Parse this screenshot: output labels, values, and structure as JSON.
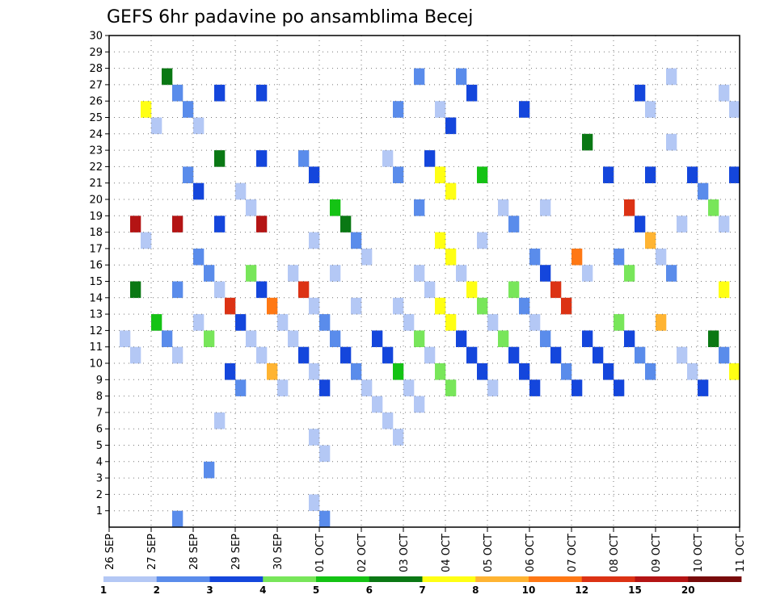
{
  "chart_data": {
    "type": "heatmap",
    "title": "GEFS 6hr padavine po ansamblima Becej",
    "x_tick_labels": [
      "26 SEP",
      "27 SEP",
      "28 SEP",
      "29 SEP",
      "30 SEP",
      "01 OCT",
      "02 OCT",
      "03 OCT",
      "04 OCT",
      "05 OCT",
      "06 OCT",
      "07 OCT",
      "08 OCT",
      "09 OCT",
      "10 OCT",
      "11 OCT"
    ],
    "x_range_steps": [
      0,
      60
    ],
    "y_tick_labels": [
      "1",
      "2",
      "3",
      "4",
      "5",
      "6",
      "7",
      "8",
      "9",
      "10",
      "11",
      "12",
      "13",
      "14",
      "15",
      "16",
      "17",
      "18",
      "19",
      "20",
      "21",
      "22",
      "23",
      "24",
      "25",
      "26",
      "27",
      "28",
      "29",
      "30"
    ],
    "y_range_members": [
      0,
      30
    ],
    "grid": true,
    "legend": "bottom",
    "colorbar_labels": [
      "1",
      "2",
      "3",
      "4",
      "5",
      "6",
      "7",
      "8",
      "10",
      "12",
      "15",
      "20"
    ],
    "levels_colors": [
      "#b4c8f5",
      "#5a8ceb",
      "#1446dc",
      "#78e65a",
      "#14c314",
      "#0a7814",
      "#ffff14",
      "#ffb432",
      "#ff7814",
      "#dc3214",
      "#b41414",
      "#780a0a"
    ],
    "cells": [
      [
        0,
        1,
        2,
        0
      ],
      [
        0,
        2,
        2,
        0
      ],
      [
        0,
        2,
        3,
        5
      ],
      [
        0,
        2,
        4,
        10
      ],
      [
        0,
        3,
        4,
        0
      ],
      [
        0,
        3,
        6,
        6
      ],
      [
        0,
        4,
        3,
        4
      ],
      [
        0,
        4,
        6,
        0
      ],
      [
        0,
        5,
        2,
        1
      ],
      [
        0,
        5,
        6,
        5
      ],
      [
        0,
        6,
        2,
        0
      ],
      [
        0,
        6,
        3,
        1
      ],
      [
        0,
        6,
        4,
        10
      ],
      [
        0,
        6,
        6,
        1
      ],
      [
        0,
        6,
        7,
        1
      ],
      [
        0,
        7,
        5,
        1
      ],
      [
        0,
        7,
        6,
        1
      ],
      [
        0,
        8,
        3,
        0
      ],
      [
        0,
        8,
        4,
        1
      ],
      [
        0,
        8,
        5,
        2
      ],
      [
        0,
        8,
        6,
        0
      ],
      [
        0,
        9,
        0,
        1
      ],
      [
        0,
        9,
        2,
        3
      ],
      [
        0,
        9,
        3,
        1
      ],
      [
        0,
        10,
        1,
        0
      ],
      [
        0,
        10,
        3,
        0
      ],
      [
        0,
        10,
        4,
        2
      ],
      [
        0,
        10,
        5,
        5
      ],
      [
        0,
        10,
        6,
        2
      ],
      [
        0,
        11,
        2,
        2
      ],
      [
        0,
        11,
        3,
        9
      ],
      [
        0,
        12,
        2,
        1
      ],
      [
        0,
        12,
        3,
        2
      ],
      [
        0,
        12,
        5,
        0
      ],
      [
        0,
        13,
        2,
        0
      ],
      [
        0,
        13,
        3,
        3
      ],
      [
        0,
        13,
        4,
        0
      ],
      [
        0,
        14,
        2,
        0
      ],
      [
        0,
        14,
        3,
        2
      ],
      [
        0,
        14,
        4,
        10
      ],
      [
        0,
        14,
        5,
        2
      ],
      [
        0,
        14,
        6,
        2
      ],
      [
        0,
        15,
        2,
        7
      ],
      [
        0,
        15,
        3,
        8
      ],
      [
        0,
        16,
        2,
        0
      ],
      [
        0,
        16,
        3,
        0
      ],
      [
        0,
        17,
        2,
        0
      ],
      [
        0,
        17,
        3,
        0
      ],
      [
        0,
        18,
        2,
        2
      ],
      [
        0,
        18,
        3,
        9
      ],
      [
        0,
        18,
        5,
        1
      ],
      [
        0,
        19,
        0,
        0
      ],
      [
        0,
        19,
        1,
        0
      ],
      [
        0,
        19,
        2,
        0
      ],
      [
        0,
        19,
        3,
        0
      ],
      [
        0,
        19,
        4,
        0
      ],
      [
        0,
        19,
        5,
        2
      ],
      [
        0,
        20,
        0,
        1
      ],
      [
        0,
        20,
        1,
        0
      ],
      [
        0,
        20,
        2,
        2
      ],
      [
        0,
        20,
        3,
        1
      ],
      [
        0,
        21,
        2,
        1
      ],
      [
        0,
        21,
        3,
        0
      ],
      [
        0,
        21,
        4,
        4
      ],
      [
        0,
        22,
        2,
        2
      ],
      [
        0,
        22,
        4,
        5
      ],
      [
        0,
        23,
        2,
        1
      ],
      [
        0,
        23,
        3,
        0
      ],
      [
        0,
        23,
        4,
        1
      ],
      [
        0,
        24,
        2,
        0
      ],
      [
        0,
        24,
        4,
        0
      ],
      [
        0,
        25,
        1,
        0
      ],
      [
        0,
        25,
        2,
        2
      ],
      [
        0,
        26,
        1,
        0
      ],
      [
        0,
        26,
        2,
        2
      ],
      [
        0,
        26,
        5,
        0
      ],
      [
        0,
        27,
        1,
        0
      ],
      [
        0,
        27,
        2,
        4
      ],
      [
        0,
        27,
        3,
        0
      ],
      [
        0,
        27,
        5,
        1
      ],
      [
        0,
        27,
        6,
        1
      ],
      [
        0,
        28,
        2,
        0
      ],
      [
        0,
        28,
        3,
        0
      ],
      [
        0,
        29,
        1,
        0
      ],
      [
        0,
        29,
        2,
        3
      ],
      [
        0,
        29,
        3,
        0
      ],
      [
        0,
        29,
        4,
        1
      ],
      [
        0,
        29,
        6,
        1
      ],
      [
        0,
        30,
        2,
        0
      ],
      [
        0,
        30,
        3,
        0
      ],
      [
        0,
        30,
        5,
        2
      ],
      [
        0,
        31,
        2,
        3
      ],
      [
        0,
        31,
        3,
        6
      ],
      [
        0,
        31,
        4,
        6
      ],
      [
        0,
        31,
        5,
        6
      ],
      [
        0,
        31,
        6,
        0
      ],
      [
        0,
        32,
        2,
        3
      ],
      [
        0,
        32,
        3,
        6
      ],
      [
        0,
        32,
        4,
        6
      ],
      [
        0,
        32,
        5,
        6
      ],
      [
        0,
        32,
        6,
        2
      ],
      [
        0,
        33,
        2,
        2
      ],
      [
        0,
        33,
        3,
        0
      ],
      [
        0,
        33,
        6,
        1
      ],
      [
        0,
        34,
        2,
        2
      ],
      [
        0,
        34,
        3,
        6
      ],
      [
        0,
        34,
        6,
        2
      ],
      [
        0,
        35,
        2,
        2
      ],
      [
        0,
        35,
        3,
        3
      ],
      [
        0,
        35,
        4,
        0
      ],
      [
        0,
        35,
        5,
        4
      ],
      [
        0,
        36,
        2,
        0
      ],
      [
        0,
        36,
        3,
        0
      ],
      [
        0,
        37,
        2,
        3
      ],
      [
        0,
        37,
        4,
        0
      ],
      [
        0,
        38,
        2,
        2
      ],
      [
        0,
        38,
        3,
        3
      ],
      [
        0,
        38,
        4,
        1
      ],
      [
        0,
        39,
        2,
        2
      ],
      [
        0,
        39,
        3,
        1
      ],
      [
        0,
        39,
        6,
        2
      ],
      [
        0,
        40,
        2,
        2
      ],
      [
        0,
        40,
        3,
        0
      ],
      [
        0,
        40,
        4,
        1
      ],
      [
        0,
        41,
        2,
        1
      ],
      [
        0,
        41,
        3,
        2
      ],
      [
        0,
        41,
        4,
        0
      ],
      [
        0,
        42,
        2,
        2
      ],
      [
        0,
        42,
        3,
        9
      ],
      [
        0,
        43,
        2,
        1
      ],
      [
        0,
        43,
        3,
        9
      ],
      [
        0,
        44,
        2,
        2
      ],
      [
        0,
        44,
        4,
        8
      ],
      [
        0,
        45,
        2,
        2
      ],
      [
        0,
        45,
        3,
        0
      ],
      [
        0,
        45,
        5,
        5
      ],
      [
        0,
        46,
        2,
        2
      ],
      [
        0,
        47,
        2,
        2
      ],
      [
        0,
        47,
        5,
        2
      ],
      [
        0,
        48,
        2,
        2
      ],
      [
        0,
        48,
        3,
        3
      ],
      [
        0,
        48,
        4,
        1
      ],
      [
        0,
        49,
        2,
        2
      ],
      [
        0,
        49,
        3,
        3
      ],
      [
        0,
        49,
        4,
        9
      ],
      [
        0,
        50,
        2,
        1
      ],
      [
        0,
        50,
        4,
        2
      ],
      [
        0,
        50,
        6,
        2
      ],
      [
        0,
        51,
        2,
        1
      ],
      [
        0,
        51,
        4,
        7
      ],
      [
        0,
        51,
        5,
        2
      ],
      [
        0,
        51,
        6,
        0
      ],
      [
        0,
        52,
        3,
        7
      ],
      [
        0,
        52,
        4,
        0
      ],
      [
        0,
        53,
        3,
        1
      ],
      [
        0,
        53,
        5,
        0
      ],
      [
        0,
        53,
        6,
        0
      ],
      [
        0,
        54,
        2,
        0
      ],
      [
        0,
        54,
        4,
        0
      ],
      [
        0,
        55,
        2,
        0
      ],
      [
        0,
        55,
        5,
        2
      ],
      [
        0,
        56,
        2,
        2
      ],
      [
        0,
        56,
        5,
        1
      ],
      [
        0,
        57,
        2,
        5
      ],
      [
        0,
        57,
        4,
        3
      ],
      [
        0,
        58,
        2,
        1
      ],
      [
        0,
        58,
        3,
        6
      ],
      [
        0,
        58,
        4,
        0
      ],
      [
        0,
        58,
        6,
        0
      ],
      [
        0,
        59,
        2,
        6
      ],
      [
        0,
        59,
        5,
        2
      ],
      [
        0,
        59,
        6,
        0
      ]
    ]
  }
}
